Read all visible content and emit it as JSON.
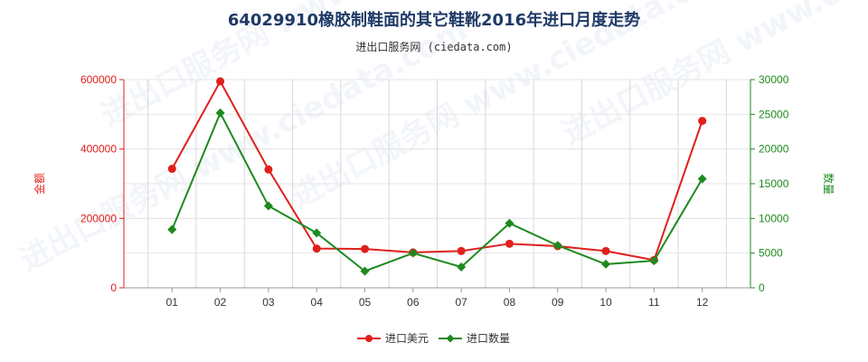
{
  "chart_data": {
    "type": "line",
    "title": "64029910橡胶制鞋面的其它鞋靴2016年进口月度走势",
    "subtitle": "进出口服务网 (ciedata.com)",
    "watermark": "进出口服务网 www.ciedata.com",
    "categories": [
      "01",
      "02",
      "03",
      "04",
      "05",
      "06",
      "07",
      "08",
      "09",
      "10",
      "11",
      "12"
    ],
    "y_left": {
      "label": "金额",
      "ylim": [
        0,
        600000
      ],
      "ticks": [
        "0",
        "200000",
        "400000",
        "600000"
      ],
      "tick_values": [
        0,
        200000,
        400000,
        600000
      ],
      "color": "#e0201c"
    },
    "y_right": {
      "label": "数量",
      "ylim": [
        0,
        30000
      ],
      "ticks": [
        "0",
        "5000",
        "10000",
        "15000",
        "20000",
        "25000",
        "30000"
      ],
      "tick_values": [
        0,
        5000,
        10000,
        15000,
        20000,
        25000,
        30000
      ],
      "color": "#1e8a1e"
    },
    "series": [
      {
        "name": "进口美元",
        "axis": "left",
        "color": "#e0201c",
        "marker": "circle",
        "values": [
          343000,
          595000,
          341000,
          113000,
          112000,
          102000,
          106000,
          127000,
          120000,
          106000,
          80000,
          481000
        ]
      },
      {
        "name": "进口数量",
        "axis": "right",
        "color": "#1e8a1e",
        "marker": "diamond",
        "values": [
          8400,
          25200,
          11800,
          7900,
          2400,
          5000,
          3000,
          9300,
          6100,
          3400,
          3900,
          15700
        ]
      }
    ],
    "grid": true,
    "legend_position": "bottom-center"
  }
}
